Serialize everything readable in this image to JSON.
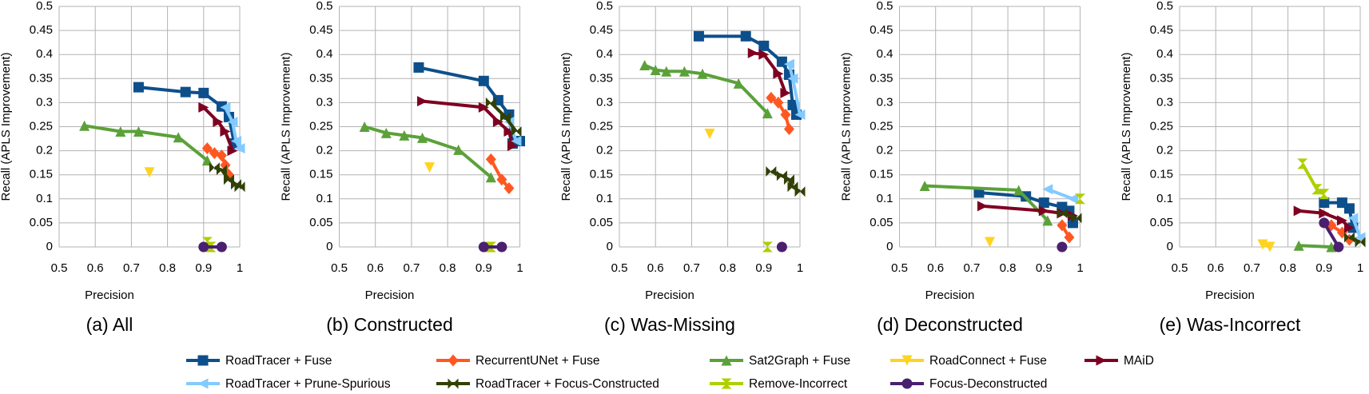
{
  "chart_data": [
    {
      "type": "line",
      "title": "(a) All",
      "xlabel": "Precision",
      "ylabel": "Recall (APLS Improvement)",
      "xlim": [
        0.5,
        1
      ],
      "ylim": [
        0,
        0.5
      ],
      "xticks": [
        0.5,
        0.6,
        0.7,
        0.8,
        0.9,
        1
      ],
      "yticks": [
        0,
        0.05,
        0.1,
        0.15,
        0.2,
        0.25,
        0.3,
        0.35,
        0.4,
        0.45,
        0.5
      ],
      "grid": true,
      "series": [
        {
          "name": "RoadTracer + Fuse",
          "color": "#0d4f8b",
          "marker": "square",
          "x": [
            0.72,
            0.85,
            0.9,
            0.95,
            0.97,
            0.985
          ],
          "values": [
            0.332,
            0.322,
            0.32,
            0.292,
            0.27,
            0.215
          ]
        },
        {
          "name": "RecurrentUNet + Fuse",
          "color": "#ff5722",
          "marker": "diamond",
          "x": [
            0.91,
            0.93,
            0.95,
            0.96,
            0.97
          ],
          "values": [
            0.205,
            0.195,
            0.19,
            0.17,
            0.15
          ]
        },
        {
          "name": "Sat2Graph + Fuse",
          "color": "#5ba13a",
          "marker": "triangle-up",
          "x": [
            0.57,
            0.67,
            0.72,
            0.83,
            0.91
          ],
          "values": [
            0.252,
            0.24,
            0.24,
            0.228,
            0.18
          ]
        },
        {
          "name": "RoadConnect + Fuse",
          "color": "#ffd320",
          "marker": "triangle-down",
          "x": [
            0.75
          ],
          "values": [
            0.155
          ]
        },
        {
          "name": "MAiD",
          "color": "#7e0021",
          "marker": "triangle-right",
          "x": [
            0.9,
            0.94,
            0.96,
            0.98
          ],
          "values": [
            0.29,
            0.26,
            0.24,
            0.2
          ]
        },
        {
          "name": "RoadTracer + Prune-Spurious",
          "color": "#83caff",
          "marker": "triangle-left",
          "x": [
            0.96,
            0.98,
            0.99,
            1.0
          ],
          "values": [
            0.29,
            0.26,
            0.22,
            0.205
          ]
        },
        {
          "name": "RoadTracer + Focus-Constructed",
          "color": "#314004",
          "marker": "bowtie",
          "x": [
            0.93,
            0.95,
            0.97,
            0.99,
            1.0
          ],
          "values": [
            0.165,
            0.16,
            0.14,
            0.13,
            0.125
          ]
        },
        {
          "name": "Remove-Incorrect",
          "color": "#aecf00",
          "marker": "hourglass",
          "x": [
            0.91,
            0.92
          ],
          "values": [
            0.01,
            0
          ]
        },
        {
          "name": "Focus-Deconstructed",
          "color": "#4b1f6f",
          "marker": "circle",
          "x": [
            0.9,
            0.95
          ],
          "values": [
            0,
            0
          ]
        }
      ]
    },
    {
      "type": "line",
      "title": "(b) Constructed",
      "xlabel": "Precision",
      "ylabel": "Recall (APLS Improvement)",
      "xlim": [
        0.5,
        1
      ],
      "ylim": [
        0,
        0.5
      ],
      "xticks": [
        0.5,
        0.6,
        0.7,
        0.8,
        0.9,
        1
      ],
      "yticks": [
        0,
        0.05,
        0.1,
        0.15,
        0.2,
        0.25,
        0.3,
        0.35,
        0.4,
        0.45,
        0.5
      ],
      "grid": true,
      "series": [
        {
          "x": [
            0.72,
            0.9,
            0.94,
            0.97,
            0.98,
            1.0
          ],
          "values": [
            0.373,
            0.345,
            0.305,
            0.275,
            0.215,
            0.22
          ]
        },
        {
          "x": [
            0.92,
            0.95,
            0.97
          ],
          "values": [
            0.182,
            0.14,
            0.122
          ]
        },
        {
          "x": [
            0.57,
            0.63,
            0.68,
            0.73,
            0.83,
            0.92
          ],
          "values": [
            0.25,
            0.237,
            0.232,
            0.227,
            0.202,
            0.145
          ]
        },
        {
          "x": [
            0.75
          ],
          "values": [
            0.165
          ]
        },
        {
          "x": [
            0.73,
            0.9,
            0.94,
            0.97,
            0.98
          ],
          "values": [
            0.303,
            0.29,
            0.26,
            0.24,
            0.21
          ]
        },
        {
          "x": [
            0.97,
            0.99
          ],
          "values": [
            0.26,
            0.22
          ]
        },
        {
          "x": [
            0.92,
            0.96,
            0.99
          ],
          "values": [
            0.3,
            0.27,
            0.24
          ]
        },
        {
          "x": [
            0.91,
            0.92
          ],
          "values": [
            0,
            0
          ]
        },
        {
          "x": [
            0.9,
            0.95
          ],
          "values": [
            0,
            0
          ]
        }
      ]
    },
    {
      "type": "line",
      "title": "(c) Was-Missing",
      "xlabel": "Precision",
      "ylabel": "Recall (APLS Improvement)",
      "xlim": [
        0.5,
        1
      ],
      "ylim": [
        0,
        0.5
      ],
      "xticks": [
        0.5,
        0.6,
        0.7,
        0.8,
        0.9,
        1
      ],
      "yticks": [
        0,
        0.05,
        0.1,
        0.15,
        0.2,
        0.25,
        0.3,
        0.35,
        0.4,
        0.45,
        0.5
      ],
      "grid": true,
      "series": [
        {
          "x": [
            0.72,
            0.85,
            0.9,
            0.95,
            0.97,
            0.98,
            0.99
          ],
          "values": [
            0.438,
            0.438,
            0.418,
            0.385,
            0.358,
            0.295,
            0.275
          ]
        },
        {
          "x": [
            0.92,
            0.94,
            0.96,
            0.97
          ],
          "values": [
            0.31,
            0.3,
            0.275,
            0.245
          ]
        },
        {
          "x": [
            0.57,
            0.6,
            0.63,
            0.68,
            0.73,
            0.83,
            0.91
          ],
          "values": [
            0.378,
            0.368,
            0.365,
            0.365,
            0.36,
            0.34,
            0.278
          ]
        },
        {
          "x": [
            0.75
          ],
          "values": [
            0.235
          ]
        },
        {
          "x": [
            0.87,
            0.9,
            0.94,
            0.96
          ],
          "values": [
            0.403,
            0.4,
            0.36,
            0.32
          ]
        },
        {
          "x": [
            0.97,
            0.98,
            1.0
          ],
          "values": [
            0.38,
            0.35,
            0.275
          ]
        },
        {
          "x": [
            0.92,
            0.95,
            0.97,
            0.98,
            1.0
          ],
          "values": [
            0.157,
            0.148,
            0.14,
            0.125,
            0.115
          ]
        },
        {
          "x": [
            0.91
          ],
          "values": [
            0
          ]
        },
        {
          "x": [
            0.95
          ],
          "values": [
            0
          ]
        }
      ]
    },
    {
      "type": "line",
      "title": "(d) Deconstructed",
      "xlabel": "Precision",
      "ylabel": "Recall (APLS Improvement)",
      "xlim": [
        0.5,
        1
      ],
      "ylim": [
        0,
        0.5
      ],
      "xticks": [
        0.5,
        0.6,
        0.7,
        0.8,
        0.9,
        1
      ],
      "yticks": [
        0,
        0.05,
        0.1,
        0.15,
        0.2,
        0.25,
        0.3,
        0.35,
        0.4,
        0.45,
        0.5
      ],
      "grid": true,
      "series": [
        {
          "x": [
            0.72,
            0.85,
            0.9,
            0.95,
            0.97,
            0.98
          ],
          "values": [
            0.113,
            0.105,
            0.092,
            0.083,
            0.075,
            0.05
          ]
        },
        {
          "x": [
            0.95,
            0.97
          ],
          "values": [
            0.045,
            0.02
          ]
        },
        {
          "x": [
            0.57,
            0.83,
            0.91
          ],
          "values": [
            0.127,
            0.118,
            0.055
          ]
        },
        {
          "x": [
            0.75
          ],
          "values": [
            0.01
          ]
        },
        {
          "x": [
            0.73,
            0.9,
            0.95,
            0.98
          ],
          "values": [
            0.085,
            0.075,
            0.07,
            0.065
          ]
        },
        {
          "x": [
            0.91,
            0.98
          ],
          "values": [
            0.12,
            0.1
          ]
        },
        {
          "x": [
            0.95,
            0.99
          ],
          "values": [
            0.07,
            0.06
          ]
        },
        {
          "x": [
            1.0
          ],
          "values": [
            0.1
          ]
        },
        {
          "x": [
            0.95
          ],
          "values": [
            0
          ]
        }
      ]
    },
    {
      "type": "line",
      "title": "(e) Was-Incorrect",
      "xlabel": "Precision",
      "ylabel": "Recall (APLS Improvement)",
      "xlim": [
        0.5,
        1
      ],
      "ylim": [
        0,
        0.5
      ],
      "xticks": [
        0.5,
        0.6,
        0.7,
        0.8,
        0.9,
        1
      ],
      "yticks": [
        0,
        0.05,
        0.1,
        0.15,
        0.2,
        0.25,
        0.3,
        0.35,
        0.4,
        0.45,
        0.5
      ],
      "grid": true,
      "series": [
        {
          "x": [
            0.9,
            0.95,
            0.97,
            0.98
          ],
          "values": [
            0.092,
            0.092,
            0.08,
            0.04
          ]
        },
        {
          "x": [
            0.92,
            0.95,
            0.97
          ],
          "values": [
            0.045,
            0.03,
            0.015
          ]
        },
        {
          "x": [
            0.83,
            0.92
          ],
          "values": [
            0.003,
            0
          ]
        },
        {
          "x": [
            0.73,
            0.75
          ],
          "values": [
            0.005,
            0
          ]
        },
        {
          "x": [
            0.83,
            0.9,
            0.95,
            0.97
          ],
          "values": [
            0.075,
            0.07,
            0.055,
            0.04
          ]
        },
        {
          "x": [
            0.98,
            1.0
          ],
          "values": [
            0.06,
            0.02
          ]
        },
        {
          "x": [
            0.97,
            1.0
          ],
          "values": [
            0.02,
            0.01
          ]
        },
        {
          "x": [
            0.84,
            0.88,
            0.9
          ],
          "values": [
            0.173,
            0.12,
            0.11
          ]
        },
        {
          "x": [
            0.9,
            0.94
          ],
          "values": [
            0.05,
            0
          ]
        }
      ]
    }
  ]
}
